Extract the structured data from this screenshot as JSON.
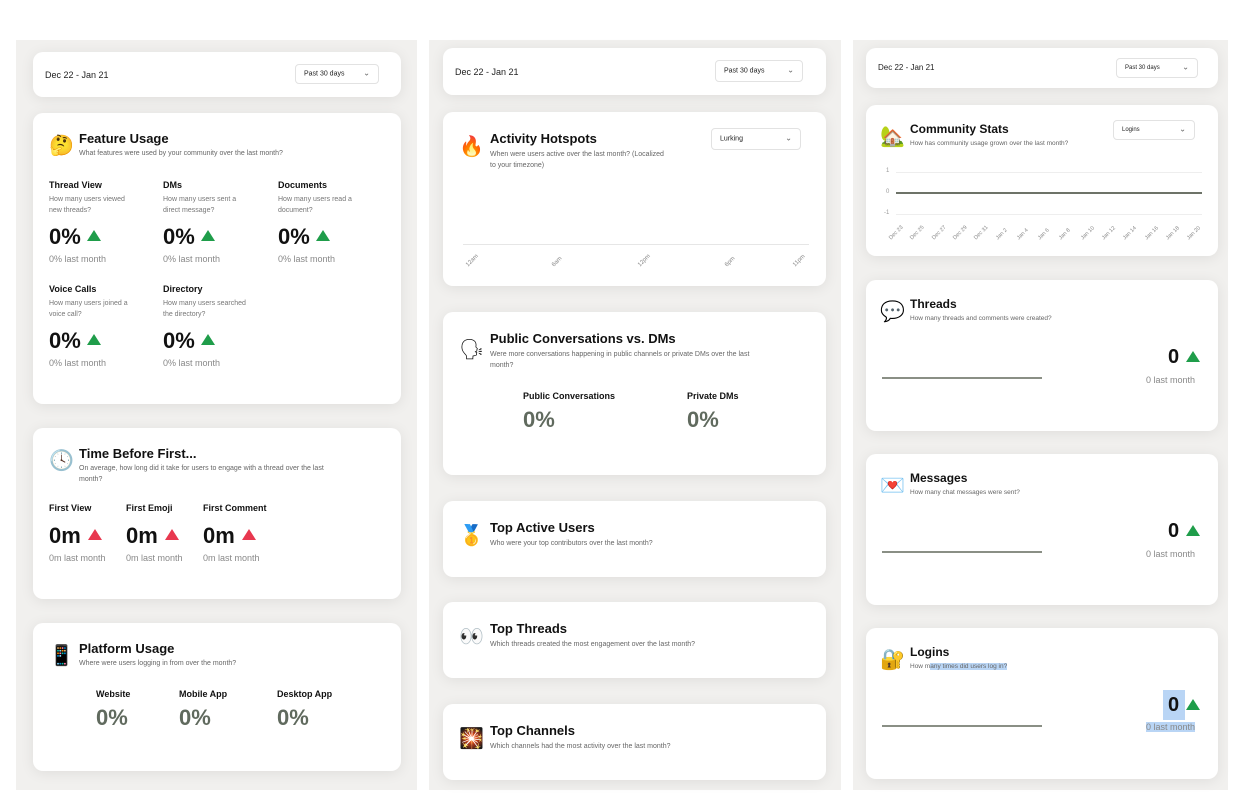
{
  "date_range": "Dec 22 - Jan 21",
  "period_select": "Past 30 days",
  "feature_usage": {
    "icon": "thinking-face-icon",
    "title": "Feature Usage",
    "subtitle": "What features were used by your community over the last month?",
    "metrics": [
      {
        "label": "Thread View",
        "desc1": "How many users viewed",
        "desc2": "new threads?",
        "value": "0%",
        "last": "0% last month"
      },
      {
        "label": "DMs",
        "desc1": "How many users sent a",
        "desc2": "direct message?",
        "value": "0%",
        "last": "0% last month"
      },
      {
        "label": "Documents",
        "desc1": "How many users read a",
        "desc2": "document?",
        "value": "0%",
        "last": "0% last month"
      },
      {
        "label": "Voice Calls",
        "desc1": "How many users joined a",
        "desc2": "voice call?",
        "value": "0%",
        "last": "0% last month"
      },
      {
        "label": "Directory",
        "desc1": "How many users searched",
        "desc2": "the directory?",
        "value": "0%",
        "last": "0% last month"
      }
    ]
  },
  "time_before_first": {
    "icon": "clock-icon",
    "title": "Time Before First...",
    "subtitle1": "On average, how long did it take for users to engage with a thread over the last",
    "subtitle2": "month?",
    "metrics": [
      {
        "label": "First View",
        "value": "0m",
        "last": "0m last month"
      },
      {
        "label": "First Emoji",
        "value": "0m",
        "last": "0m last month"
      },
      {
        "label": "First Comment",
        "value": "0m",
        "last": "0m last month"
      }
    ]
  },
  "platform_usage": {
    "icon": "mobile-phone-icon",
    "title": "Platform Usage",
    "subtitle": "Where were users logging in from over the month?",
    "metrics": [
      {
        "label": "Website",
        "value": "0%"
      },
      {
        "label": "Mobile App",
        "value": "0%"
      },
      {
        "label": "Desktop App",
        "value": "0%"
      }
    ]
  },
  "activity_hotspots": {
    "icon": "fire-icon",
    "title": "Activity Hotspots",
    "subtitle1": "When were users active over the last month? (Localized",
    "subtitle2": "to your timezone)",
    "select": "Lurking",
    "x_ticks": [
      "12am",
      "6am",
      "12pm",
      "6pm",
      "11pm"
    ]
  },
  "public_vs_dms": {
    "icon": "speaking-head-icon",
    "title": "Public Conversations vs. DMs",
    "subtitle1": "Were more conversations happening in public channels or private DMs over the last",
    "subtitle2": "month?",
    "metrics": [
      {
        "label": "Public Conversations",
        "value": "0%"
      },
      {
        "label": "Private DMs",
        "value": "0%"
      }
    ]
  },
  "top_active_users": {
    "icon": "medal-icon",
    "title": "Top Active Users",
    "subtitle": "Who were your top contributors over the last month?"
  },
  "top_threads": {
    "icon": "eyes-icon",
    "title": "Top Threads",
    "subtitle": "Which threads created the most engagement over the last month?"
  },
  "top_channels": {
    "icon": "fireworks-icon",
    "title": "Top Channels",
    "subtitle": "Which channels had the most activity over the last month?"
  },
  "community_stats": {
    "icon": "house-icon",
    "title": "Community Stats",
    "subtitle": "How has community usage grown over the last month?",
    "select": "Logins",
    "y_ticks": [
      "1",
      "0",
      "-1"
    ],
    "x_ticks": [
      "Dec 23",
      "Dec 25",
      "Dec 27",
      "Dec 29",
      "Dec 31",
      "Jan 2",
      "Jan 4",
      "Jan 6",
      "Jan 8",
      "Jan 10",
      "Jan 12",
      "Jan 14",
      "Jan 16",
      "Jan 18",
      "Jan 20"
    ]
  },
  "threads": {
    "icon": "speech-balloon-icon",
    "title": "Threads",
    "subtitle": "How many threads and comments were created?",
    "value": "0",
    "last": "0 last month"
  },
  "messages": {
    "icon": "love-letter-icon",
    "title": "Messages",
    "subtitle": "How many chat messages were sent?",
    "value": "0",
    "last": "0 last month"
  },
  "logins": {
    "icon": "locked-with-key-icon",
    "title": "Logins",
    "subtitle_a": "How m",
    "subtitle_b": "any times did users log in?",
    "value": "0",
    "last": "0 last month"
  },
  "colors": {
    "up": "#1f9d4a",
    "down": "#e8384f",
    "panel": "#f1f0ee"
  }
}
